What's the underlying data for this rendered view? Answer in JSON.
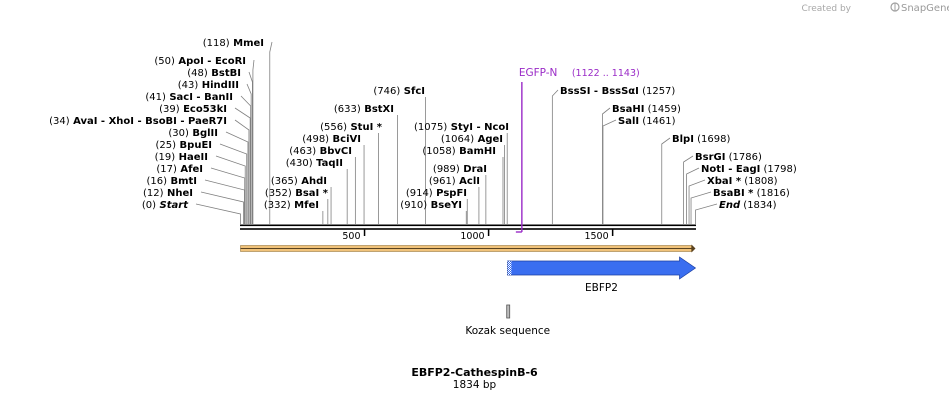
{
  "header": {
    "credit": "Created by",
    "brand": "SnapGene"
  },
  "map": {
    "title": "EBFP2-CathespinB-6",
    "length_label": "1834 bp",
    "length": 1834
  },
  "ticks": [
    {
      "value": 500,
      "label": "500"
    },
    {
      "value": 1000,
      "label": "1000"
    },
    {
      "value": 1500,
      "label": "1500"
    }
  ],
  "sites": [
    {
      "pos": 0,
      "text": "(0)  Start",
      "parts": [
        {
          "t": "(0)",
          "c": "pos"
        },
        {
          "t": "  Start",
          "c": "name ital"
        }
      ]
    },
    {
      "pos": 12,
      "parts": [
        {
          "t": "(12)",
          "c": "pos"
        },
        {
          "t": "  NheI",
          "c": "name"
        }
      ]
    },
    {
      "pos": 16,
      "parts": [
        {
          "t": "(16)",
          "c": "pos"
        },
        {
          "t": "  BmtI",
          "c": "name"
        }
      ]
    },
    {
      "pos": 17,
      "parts": [
        {
          "t": "(17)",
          "c": "pos"
        },
        {
          "t": "  AfeI",
          "c": "name"
        }
      ]
    },
    {
      "pos": 19,
      "parts": [
        {
          "t": "(19)",
          "c": "pos"
        },
        {
          "t": "  HaeII",
          "c": "name"
        }
      ]
    },
    {
      "pos": 25,
      "parts": [
        {
          "t": "(25)",
          "c": "pos"
        },
        {
          "t": "  BpuEI",
          "c": "name"
        }
      ]
    },
    {
      "pos": 30,
      "parts": [
        {
          "t": "(30)",
          "c": "pos"
        },
        {
          "t": "  BglII",
          "c": "name"
        }
      ]
    },
    {
      "pos": 34,
      "parts": [
        {
          "t": "(34)",
          "c": "pos"
        },
        {
          "t": "  AvaI",
          "c": "name"
        },
        {
          "t": "  - XhoI",
          "c": "name"
        },
        {
          "t": "  - BsoBI",
          "c": "name"
        },
        {
          "t": "  - PaeR7I",
          "c": "name"
        }
      ]
    },
    {
      "pos": 39,
      "parts": [
        {
          "t": "(39)",
          "c": "pos"
        },
        {
          "t": "  Eco53kI",
          "c": "name"
        }
      ]
    },
    {
      "pos": 41,
      "parts": [
        {
          "t": "(41)",
          "c": "pos"
        },
        {
          "t": "  SacI",
          "c": "name"
        },
        {
          "t": "  - BanII",
          "c": "name"
        }
      ]
    },
    {
      "pos": 43,
      "parts": [
        {
          "t": "(43)",
          "c": "pos"
        },
        {
          "t": "  HindIII",
          "c": "name"
        }
      ]
    },
    {
      "pos": 48,
      "parts": [
        {
          "t": "(48)",
          "c": "pos"
        },
        {
          "t": "  BstBI",
          "c": "name"
        }
      ]
    },
    {
      "pos": 50,
      "parts": [
        {
          "t": "(50)",
          "c": "pos"
        },
        {
          "t": "  ApoI",
          "c": "name"
        },
        {
          "t": "  - EcoRI",
          "c": "name"
        }
      ]
    },
    {
      "pos": 118,
      "parts": [
        {
          "t": "(118)",
          "c": "pos"
        },
        {
          "t": "  MmeI",
          "c": "name"
        }
      ]
    },
    {
      "pos": 332,
      "parts": [
        {
          "t": "(332)",
          "c": "pos"
        },
        {
          "t": "  MfeI",
          "c": "name"
        }
      ]
    },
    {
      "pos": 352,
      "parts": [
        {
          "t": "(352)",
          "c": "pos"
        },
        {
          "t": "  BsaI *",
          "c": "name"
        }
      ]
    },
    {
      "pos": 365,
      "parts": [
        {
          "t": "(365)",
          "c": "pos"
        },
        {
          "t": "  AhdI",
          "c": "name"
        }
      ]
    },
    {
      "pos": 430,
      "parts": [
        {
          "t": "(430)",
          "c": "pos"
        },
        {
          "t": "  TaqII",
          "c": "name"
        }
      ]
    },
    {
      "pos": 463,
      "parts": [
        {
          "t": "(463)",
          "c": "pos"
        },
        {
          "t": "  BbvCI",
          "c": "name"
        }
      ]
    },
    {
      "pos": 498,
      "parts": [
        {
          "t": "(498)",
          "c": "pos"
        },
        {
          "t": "  BciVI",
          "c": "name"
        }
      ]
    },
    {
      "pos": 556,
      "parts": [
        {
          "t": "(556)",
          "c": "pos"
        },
        {
          "t": "  StuI *",
          "c": "name"
        }
      ]
    },
    {
      "pos": 633,
      "parts": [
        {
          "t": "(633)",
          "c": "pos"
        },
        {
          "t": "  BstXI",
          "c": "name"
        }
      ]
    },
    {
      "pos": 746,
      "parts": [
        {
          "t": "(746)",
          "c": "pos"
        },
        {
          "t": "  SfcI",
          "c": "name"
        }
      ]
    },
    {
      "pos": 910,
      "parts": [
        {
          "t": "(910)",
          "c": "pos"
        },
        {
          "t": "  BseYI",
          "c": "name"
        }
      ]
    },
    {
      "pos": 914,
      "parts": [
        {
          "t": "(914)",
          "c": "pos"
        },
        {
          "t": "  PspFI",
          "c": "name"
        }
      ]
    },
    {
      "pos": 961,
      "parts": [
        {
          "t": "(961)",
          "c": "pos"
        },
        {
          "t": "  AclI",
          "c": "name"
        }
      ]
    },
    {
      "pos": 989,
      "parts": [
        {
          "t": "(989)",
          "c": "pos"
        },
        {
          "t": "  DraI",
          "c": "name"
        }
      ]
    },
    {
      "pos": 1058,
      "parts": [
        {
          "t": "(1058)",
          "c": "pos"
        },
        {
          "t": "  BamHI",
          "c": "name"
        }
      ]
    },
    {
      "pos": 1064,
      "parts": [
        {
          "t": "(1064)",
          "c": "pos"
        },
        {
          "t": "  AgeI",
          "c": "name"
        }
      ]
    },
    {
      "pos": 1075,
      "parts": [
        {
          "t": "(1075)",
          "c": "pos"
        },
        {
          "t": "  StyI",
          "c": "name"
        },
        {
          "t": "  - NcoI",
          "c": "name"
        }
      ]
    },
    {
      "pos": 1257,
      "parts": [
        {
          "t": "BssSI",
          "c": "name"
        },
        {
          "t": "  - BssSαI",
          "c": "name"
        },
        {
          "t": "   (1257)",
          "c": "pos"
        }
      ]
    },
    {
      "pos": 1459,
      "parts": [
        {
          "t": "BsaHI",
          "c": "name"
        },
        {
          "t": "   (1459)",
          "c": "pos"
        }
      ]
    },
    {
      "pos": 1461,
      "parts": [
        {
          "t": "SalI",
          "c": "name"
        },
        {
          "t": "   (1461)",
          "c": "pos"
        }
      ]
    },
    {
      "pos": 1698,
      "parts": [
        {
          "t": "BlpI",
          "c": "name"
        },
        {
          "t": "   (1698)",
          "c": "pos"
        }
      ]
    },
    {
      "pos": 1786,
      "parts": [
        {
          "t": "BsrGI",
          "c": "name"
        },
        {
          "t": "   (1786)",
          "c": "pos"
        }
      ]
    },
    {
      "pos": 1798,
      "parts": [
        {
          "t": "NotI",
          "c": "name"
        },
        {
          "t": "  - EagI",
          "c": "name"
        },
        {
          "t": "   (1798)",
          "c": "pos"
        }
      ]
    },
    {
      "pos": 1808,
      "parts": [
        {
          "t": "XbaI *",
          "c": "name"
        },
        {
          "t": "   (1808)",
          "c": "pos"
        }
      ]
    },
    {
      "pos": 1816,
      "parts": [
        {
          "t": "BsaBI *",
          "c": "name"
        },
        {
          "t": "   (1816)",
          "c": "pos"
        }
      ]
    },
    {
      "pos": 1834,
      "parts": [
        {
          "t": "End",
          "c": "name ital"
        },
        {
          "t": "   (1834)",
          "c": "pos"
        }
      ]
    }
  ],
  "primer": {
    "name": "EGFP-N",
    "range": "(1122 .. 1143)",
    "start": 1122,
    "end": 1143,
    "color": "#9a2bc7"
  },
  "features": [
    {
      "name": "EBFP2",
      "start": 1076,
      "end": 1834,
      "color": "#3a6ef0",
      "type": "arrow"
    },
    {
      "name": "Kozak sequence",
      "start": 1069,
      "end": 1078,
      "color": "#bdbdbd",
      "type": "box"
    }
  ],
  "orf": {
    "start": 0,
    "end": 1834,
    "color": "#f0c27a"
  }
}
